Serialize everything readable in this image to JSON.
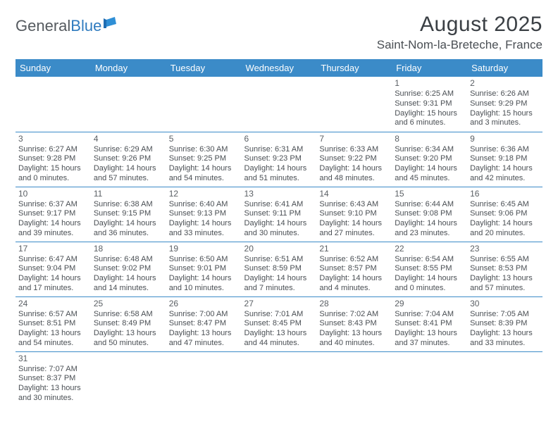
{
  "brand": {
    "part1": "General",
    "part2": "Blue"
  },
  "title": "August 2025",
  "location": "Saint-Nom-la-Breteche, France",
  "day_headers": [
    "Sunday",
    "Monday",
    "Tuesday",
    "Wednesday",
    "Thursday",
    "Friday",
    "Saturday"
  ],
  "colors": {
    "header_bg": "#3b8bc8",
    "header_text": "#ffffff",
    "border": "#3b8bc8",
    "body_text": "#4a4f54",
    "title_text": "#3a3f44",
    "logo_gray": "#555a5f",
    "logo_blue": "#2f7bbf"
  },
  "weeks": [
    [
      {
        "n": "",
        "l1": "",
        "l2": "",
        "l3": "",
        "l4": ""
      },
      {
        "n": "",
        "l1": "",
        "l2": "",
        "l3": "",
        "l4": ""
      },
      {
        "n": "",
        "l1": "",
        "l2": "",
        "l3": "",
        "l4": ""
      },
      {
        "n": "",
        "l1": "",
        "l2": "",
        "l3": "",
        "l4": ""
      },
      {
        "n": "",
        "l1": "",
        "l2": "",
        "l3": "",
        "l4": ""
      },
      {
        "n": "1",
        "l1": "Sunrise: 6:25 AM",
        "l2": "Sunset: 9:31 PM",
        "l3": "Daylight: 15 hours",
        "l4": "and 6 minutes."
      },
      {
        "n": "2",
        "l1": "Sunrise: 6:26 AM",
        "l2": "Sunset: 9:29 PM",
        "l3": "Daylight: 15 hours",
        "l4": "and 3 minutes."
      }
    ],
    [
      {
        "n": "3",
        "l1": "Sunrise: 6:27 AM",
        "l2": "Sunset: 9:28 PM",
        "l3": "Daylight: 15 hours",
        "l4": "and 0 minutes."
      },
      {
        "n": "4",
        "l1": "Sunrise: 6:29 AM",
        "l2": "Sunset: 9:26 PM",
        "l3": "Daylight: 14 hours",
        "l4": "and 57 minutes."
      },
      {
        "n": "5",
        "l1": "Sunrise: 6:30 AM",
        "l2": "Sunset: 9:25 PM",
        "l3": "Daylight: 14 hours",
        "l4": "and 54 minutes."
      },
      {
        "n": "6",
        "l1": "Sunrise: 6:31 AM",
        "l2": "Sunset: 9:23 PM",
        "l3": "Daylight: 14 hours",
        "l4": "and 51 minutes."
      },
      {
        "n": "7",
        "l1": "Sunrise: 6:33 AM",
        "l2": "Sunset: 9:22 PM",
        "l3": "Daylight: 14 hours",
        "l4": "and 48 minutes."
      },
      {
        "n": "8",
        "l1": "Sunrise: 6:34 AM",
        "l2": "Sunset: 9:20 PM",
        "l3": "Daylight: 14 hours",
        "l4": "and 45 minutes."
      },
      {
        "n": "9",
        "l1": "Sunrise: 6:36 AM",
        "l2": "Sunset: 9:18 PM",
        "l3": "Daylight: 14 hours",
        "l4": "and 42 minutes."
      }
    ],
    [
      {
        "n": "10",
        "l1": "Sunrise: 6:37 AM",
        "l2": "Sunset: 9:17 PM",
        "l3": "Daylight: 14 hours",
        "l4": "and 39 minutes."
      },
      {
        "n": "11",
        "l1": "Sunrise: 6:38 AM",
        "l2": "Sunset: 9:15 PM",
        "l3": "Daylight: 14 hours",
        "l4": "and 36 minutes."
      },
      {
        "n": "12",
        "l1": "Sunrise: 6:40 AM",
        "l2": "Sunset: 9:13 PM",
        "l3": "Daylight: 14 hours",
        "l4": "and 33 minutes."
      },
      {
        "n": "13",
        "l1": "Sunrise: 6:41 AM",
        "l2": "Sunset: 9:11 PM",
        "l3": "Daylight: 14 hours",
        "l4": "and 30 minutes."
      },
      {
        "n": "14",
        "l1": "Sunrise: 6:43 AM",
        "l2": "Sunset: 9:10 PM",
        "l3": "Daylight: 14 hours",
        "l4": "and 27 minutes."
      },
      {
        "n": "15",
        "l1": "Sunrise: 6:44 AM",
        "l2": "Sunset: 9:08 PM",
        "l3": "Daylight: 14 hours",
        "l4": "and 23 minutes."
      },
      {
        "n": "16",
        "l1": "Sunrise: 6:45 AM",
        "l2": "Sunset: 9:06 PM",
        "l3": "Daylight: 14 hours",
        "l4": "and 20 minutes."
      }
    ],
    [
      {
        "n": "17",
        "l1": "Sunrise: 6:47 AM",
        "l2": "Sunset: 9:04 PM",
        "l3": "Daylight: 14 hours",
        "l4": "and 17 minutes."
      },
      {
        "n": "18",
        "l1": "Sunrise: 6:48 AM",
        "l2": "Sunset: 9:02 PM",
        "l3": "Daylight: 14 hours",
        "l4": "and 14 minutes."
      },
      {
        "n": "19",
        "l1": "Sunrise: 6:50 AM",
        "l2": "Sunset: 9:01 PM",
        "l3": "Daylight: 14 hours",
        "l4": "and 10 minutes."
      },
      {
        "n": "20",
        "l1": "Sunrise: 6:51 AM",
        "l2": "Sunset: 8:59 PM",
        "l3": "Daylight: 14 hours",
        "l4": "and 7 minutes."
      },
      {
        "n": "21",
        "l1": "Sunrise: 6:52 AM",
        "l2": "Sunset: 8:57 PM",
        "l3": "Daylight: 14 hours",
        "l4": "and 4 minutes."
      },
      {
        "n": "22",
        "l1": "Sunrise: 6:54 AM",
        "l2": "Sunset: 8:55 PM",
        "l3": "Daylight: 14 hours",
        "l4": "and 0 minutes."
      },
      {
        "n": "23",
        "l1": "Sunrise: 6:55 AM",
        "l2": "Sunset: 8:53 PM",
        "l3": "Daylight: 13 hours",
        "l4": "and 57 minutes."
      }
    ],
    [
      {
        "n": "24",
        "l1": "Sunrise: 6:57 AM",
        "l2": "Sunset: 8:51 PM",
        "l3": "Daylight: 13 hours",
        "l4": "and 54 minutes."
      },
      {
        "n": "25",
        "l1": "Sunrise: 6:58 AM",
        "l2": "Sunset: 8:49 PM",
        "l3": "Daylight: 13 hours",
        "l4": "and 50 minutes."
      },
      {
        "n": "26",
        "l1": "Sunrise: 7:00 AM",
        "l2": "Sunset: 8:47 PM",
        "l3": "Daylight: 13 hours",
        "l4": "and 47 minutes."
      },
      {
        "n": "27",
        "l1": "Sunrise: 7:01 AM",
        "l2": "Sunset: 8:45 PM",
        "l3": "Daylight: 13 hours",
        "l4": "and 44 minutes."
      },
      {
        "n": "28",
        "l1": "Sunrise: 7:02 AM",
        "l2": "Sunset: 8:43 PM",
        "l3": "Daylight: 13 hours",
        "l4": "and 40 minutes."
      },
      {
        "n": "29",
        "l1": "Sunrise: 7:04 AM",
        "l2": "Sunset: 8:41 PM",
        "l3": "Daylight: 13 hours",
        "l4": "and 37 minutes."
      },
      {
        "n": "30",
        "l1": "Sunrise: 7:05 AM",
        "l2": "Sunset: 8:39 PM",
        "l3": "Daylight: 13 hours",
        "l4": "and 33 minutes."
      }
    ],
    [
      {
        "n": "31",
        "l1": "Sunrise: 7:07 AM",
        "l2": "Sunset: 8:37 PM",
        "l3": "Daylight: 13 hours",
        "l4": "and 30 minutes."
      },
      {
        "n": "",
        "l1": "",
        "l2": "",
        "l3": "",
        "l4": ""
      },
      {
        "n": "",
        "l1": "",
        "l2": "",
        "l3": "",
        "l4": ""
      },
      {
        "n": "",
        "l1": "",
        "l2": "",
        "l3": "",
        "l4": ""
      },
      {
        "n": "",
        "l1": "",
        "l2": "",
        "l3": "",
        "l4": ""
      },
      {
        "n": "",
        "l1": "",
        "l2": "",
        "l3": "",
        "l4": ""
      },
      {
        "n": "",
        "l1": "",
        "l2": "",
        "l3": "",
        "l4": ""
      }
    ]
  ]
}
